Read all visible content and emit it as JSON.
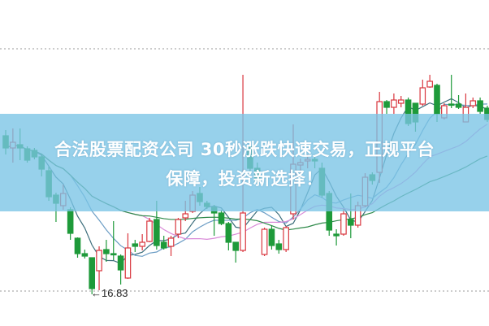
{
  "banner": {
    "line1": "合法股票配资公司 30秒涨跌快速交易，正规平台",
    "line2": "保障，投资新选择！"
  },
  "chart_data": {
    "type": "candlestick",
    "title": "",
    "xlabel": "",
    "ylabel": "",
    "grid": "horizontal dotted",
    "colors": {
      "up": "#d9363e",
      "down": "#1e9a3a",
      "ma_fast": "#3d6e7c",
      "ma_mid": "#6a9cc4",
      "ma_slow": "#d98ad8",
      "ma_long": "#2f8a4a",
      "banner": "#7ac4e6"
    },
    "annotations": [
      {
        "text": "←16.83",
        "price": 16.83,
        "type": "period-low"
      }
    ],
    "ohlc": [
      [
        20.73,
        20.87,
        20.27,
        20.43
      ],
      [
        20.43,
        20.91,
        20.07,
        20.57
      ],
      [
        20.51,
        20.91,
        20.13,
        20.43
      ],
      [
        20.41,
        20.47,
        20.07,
        20.13
      ],
      [
        20.37,
        20.43,
        20.15,
        20.21
      ],
      [
        20.21,
        20.27,
        19.73,
        19.91
      ],
      [
        19.87,
        19.97,
        19.13,
        19.23
      ],
      [
        19.27,
        19.33,
        18.61,
        19.07
      ],
      [
        19.01,
        19.53,
        18.91,
        19.31
      ],
      [
        18.91,
        18.97,
        18.17,
        18.33
      ],
      [
        18.21,
        18.23,
        17.73,
        17.83
      ],
      [
        17.83,
        17.93,
        17.71,
        17.77
      ],
      [
        17.73,
        17.73,
        16.83,
        16.97
      ],
      [
        17.41,
        18.01,
        16.93,
        17.91
      ],
      [
        17.93,
        18.17,
        17.63,
        17.83
      ],
      [
        17.83,
        18.63,
        17.67,
        17.81
      ],
      [
        17.77,
        17.81,
        17.07,
        17.43
      ],
      [
        17.23,
        18.33,
        17.21,
        17.97
      ],
      [
        18.07,
        18.17,
        17.87,
        18.01
      ],
      [
        18.01,
        18.31,
        17.91,
        18.11
      ],
      [
        18.13,
        18.71,
        18.11,
        18.63
      ],
      [
        18.67,
        19.13,
        17.93,
        18.03
      ],
      [
        18.11,
        18.27,
        17.93,
        17.97
      ],
      [
        18.01,
        18.27,
        17.77,
        18.21
      ],
      [
        18.31,
        18.71,
        18.21,
        18.67
      ],
      [
        18.71,
        19.13,
        18.63,
        18.81
      ],
      [
        18.87,
        19.37,
        18.83,
        19.27
      ],
      [
        19.31,
        19.47,
        19.01,
        19.11
      ],
      [
        19.07,
        19.13,
        18.93,
        18.99
      ],
      [
        18.97,
        19.03,
        18.27,
        18.83
      ],
      [
        18.83,
        18.91,
        18.53,
        18.57
      ],
      [
        18.57,
        18.61,
        17.91,
        18.11
      ],
      [
        18.11,
        18.11,
        17.61,
        17.91
      ],
      [
        17.91,
        22.23,
        17.87,
        18.83
      ],
      [
        20.47,
        20.57,
        19.83,
        19.93
      ],
      [
        19.93,
        20.07,
        19.53,
        19.63
      ],
      [
        17.81,
        18.47,
        17.77,
        18.43
      ],
      [
        18.43,
        18.53,
        17.93,
        18.03
      ],
      [
        18.07,
        18.17,
        17.83,
        17.93
      ],
      [
        17.93,
        18.51,
        17.87,
        18.47
      ],
      [
        18.81,
        21.01,
        18.67,
        20.03
      ],
      [
        20.01,
        20.17,
        19.77,
        20.07
      ],
      [
        20.11,
        20.27,
        19.93,
        20.15
      ],
      [
        20.15,
        20.27,
        19.93,
        20.11
      ],
      [
        19.93,
        20.07,
        19.21,
        19.27
      ],
      [
        19.31,
        19.37,
        18.27,
        18.41
      ],
      [
        18.31,
        18.43,
        18.03,
        18.27
      ],
      [
        18.31,
        18.93,
        18.27,
        18.81
      ],
      [
        18.67,
        19.31,
        18.21,
        18.53
      ],
      [
        18.53,
        19.11,
        18.47,
        19.01
      ],
      [
        19.01,
        19.81,
        18.97,
        19.71
      ],
      [
        19.77,
        19.83,
        19.53,
        19.63
      ],
      [
        19.83,
        21.81,
        19.57,
        21.57
      ],
      [
        21.57,
        21.61,
        21.27,
        21.43
      ],
      [
        21.43,
        21.77,
        21.27,
        21.61
      ],
      [
        21.53,
        21.71,
        21.43,
        21.61
      ],
      [
        21.61,
        21.67,
        20.97,
        21.03
      ],
      [
        21.53,
        21.53,
        20.83,
        21.07
      ],
      [
        21.51,
        22.11,
        21.47,
        21.91
      ],
      [
        21.93,
        22.23,
        21.91,
        22.07
      ],
      [
        21.97,
        22.01,
        21.07,
        21.27
      ],
      [
        21.17,
        21.53,
        21.13,
        21.47
      ],
      [
        21.51,
        22.23,
        21.41,
        21.49
      ],
      [
        21.51,
        21.73,
        21.39,
        21.43
      ],
      [
        21.07,
        21.77,
        21.07,
        21.43
      ],
      [
        21.47,
        21.67,
        21.41,
        21.59
      ],
      [
        21.59,
        21.67,
        21.27,
        21.33
      ],
      [
        21.41,
        21.47,
        21.07,
        21.13
      ]
    ]
  }
}
